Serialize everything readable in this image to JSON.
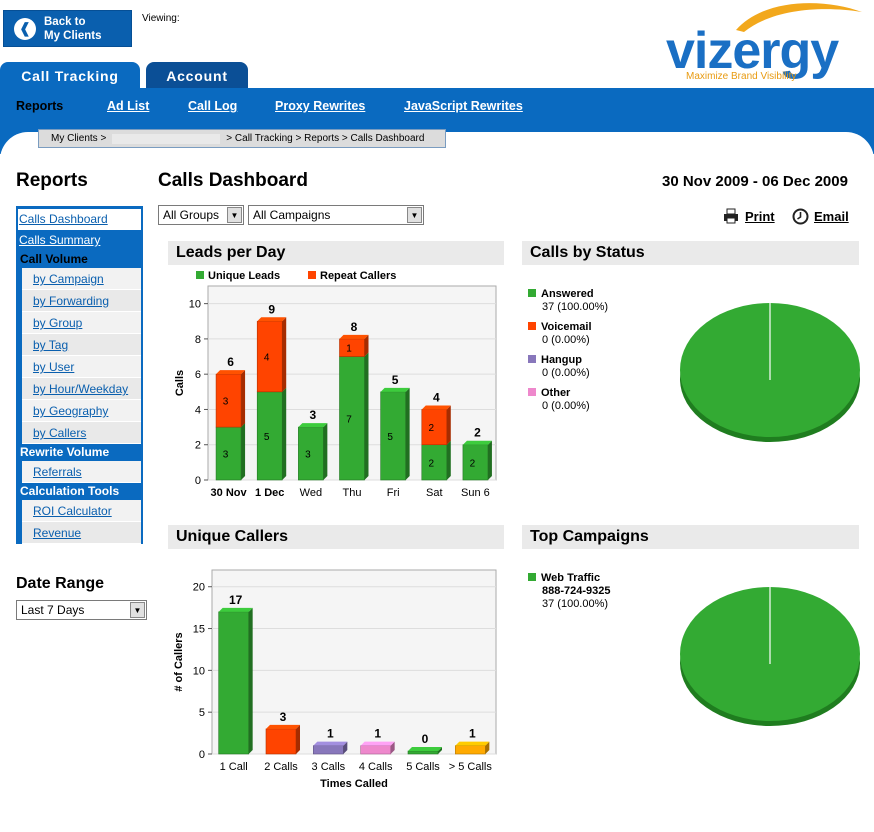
{
  "header": {
    "back_label": "Back to\nMy Clients",
    "viewing_label": "Viewing:",
    "logo_text": "vizergy",
    "logo_tagline": "Maximize Brand Visibility"
  },
  "tabs": [
    "Call Tracking",
    "Account"
  ],
  "nav": [
    "Reports",
    "Ad List",
    "Call Log",
    "Proxy Rewrites",
    "JavaScript Rewrites"
  ],
  "breadcrumb": {
    "start": "My Clients >",
    "end": "> Call Tracking > Reports > Calls Dashboard"
  },
  "sidebar": {
    "title": "Reports",
    "links": [
      "Calls Dashboard",
      "Calls Summary"
    ],
    "call_volume_header": "Call Volume",
    "call_volume_items": [
      "by Campaign",
      "by Forwarding",
      "by Group",
      "by Tag",
      "by User",
      "by Hour/Weekday",
      "by Geography",
      "by Callers"
    ],
    "rewrite_header": "Rewrite Volume",
    "rewrite_items": [
      "Referrals"
    ],
    "calc_header": "Calculation Tools",
    "calc_items": [
      "ROI Calculator",
      "Revenue"
    ]
  },
  "date_range": {
    "title": "Date Range",
    "selected": "Last 7 Days"
  },
  "main": {
    "title": "Calls Dashboard",
    "date_range": "30 Nov 2009 - 06 Dec 2009",
    "groups_selected": "All Groups",
    "campaigns_selected": "All Campaigns",
    "print_label": "Print",
    "email_label": "Email"
  },
  "panels": {
    "leads": "Leads per Day",
    "status": "Calls by Status",
    "unique": "Unique Callers",
    "top": "Top Campaigns"
  },
  "status_legend": [
    {
      "name": "Answered",
      "value": "37  (100.00%)",
      "color": "#33aa33"
    },
    {
      "name": "Voicemail",
      "value": "0  (0.00%)",
      "color": "#ff4400"
    },
    {
      "name": "Hangup",
      "value": "0  (0.00%)",
      "color": "#8877bb"
    },
    {
      "name": "Other",
      "value": "0  (0.00%)",
      "color": "#ee88cc"
    }
  ],
  "top_legend": {
    "name": "Web Traffic",
    "phone": "888-724-9325",
    "value": "37  (100.00%)",
    "color": "#33aa33"
  },
  "chart_data": [
    {
      "type": "bar",
      "title": "Leads per Day",
      "stacked": true,
      "categories": [
        "30 Nov",
        "1 Dec",
        "Wed",
        "Thu",
        "Fri",
        "Sat",
        "Sun 6"
      ],
      "bold_categories": [
        "30 Nov",
        "1 Dec"
      ],
      "series": [
        {
          "name": "Unique Leads",
          "color": "#33aa33",
          "values": [
            3,
            5,
            3,
            7,
            5,
            2,
            2
          ]
        },
        {
          "name": "Repeat Callers",
          "color": "#ff4400",
          "values": [
            3,
            4,
            0,
            1,
            0,
            2,
            0
          ]
        }
      ],
      "totals": [
        6,
        9,
        3,
        8,
        5,
        4,
        2
      ],
      "yticks": [
        "0",
        "2",
        "4",
        "6",
        "8",
        "10"
      ],
      "ylabel": "Calls",
      "ylim": [
        0,
        11
      ]
    },
    {
      "type": "bar",
      "title": "Unique Callers",
      "categories": [
        "1 Call",
        "2 Calls",
        "3 Calls",
        "4 Calls",
        "5 Calls",
        "> 5 Calls"
      ],
      "values": [
        17,
        3,
        1,
        1,
        0,
        1
      ],
      "colors": [
        "#33aa33",
        "#ff4400",
        "#8877bb",
        "#ee88cc",
        "#33aa33",
        "#ffaa00"
      ],
      "yticks": [
        "0",
        "5",
        "10",
        "15",
        "20"
      ],
      "xlabel": "Times Called",
      "ylabel": "# of Callers",
      "ylim": [
        0,
        22
      ]
    },
    {
      "type": "pie",
      "title": "Calls by Status",
      "labels": [
        "Answered",
        "Voicemail",
        "Hangup",
        "Other"
      ],
      "values": [
        37,
        0,
        0,
        0
      ]
    },
    {
      "type": "pie",
      "title": "Top Campaigns",
      "labels": [
        "Web Traffic"
      ],
      "values": [
        37
      ]
    }
  ]
}
